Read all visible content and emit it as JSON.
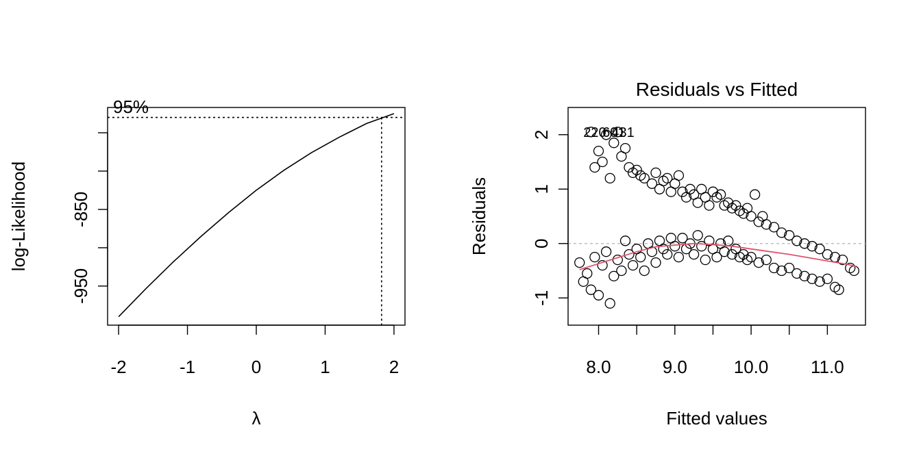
{
  "chart_data": [
    {
      "type": "line",
      "title": "",
      "xlabel": "λ",
      "ylabel": "log-Likelihood",
      "xlim": [
        -2.16,
        2.16
      ],
      "ylim": [
        -1001,
        -717
      ],
      "x_ticks": [
        "-2",
        "-1",
        "0",
        "1",
        "2"
      ],
      "y_ticks": [
        "-950",
        "-850"
      ],
      "annotation": "95%",
      "ci_level_loglik": -730,
      "lambda_ci_lower": 1.82,
      "series": [
        {
          "x": [
            -2.0,
            -1.6,
            -1.2,
            -0.8,
            -0.4,
            0.0,
            0.4,
            0.8,
            1.2,
            1.6,
            2.0
          ],
          "y": [
            -990,
            -953,
            -918,
            -885,
            -854,
            -825,
            -799,
            -776,
            -756,
            -738,
            -725
          ]
        }
      ]
    },
    {
      "type": "scatter",
      "title": "Residuals vs Fitted",
      "xlabel": "Fitted values",
      "ylabel": "Residuals",
      "xlim": [
        7.6,
        11.5
      ],
      "ylim": [
        -1.5,
        2.5
      ],
      "x_ticks": [
        "8.0",
        "9.0",
        "10.0",
        "11.0"
      ],
      "y_ticks": [
        "-1",
        "0",
        "1",
        "2"
      ],
      "reference_line_y": 0,
      "annotations": [
        "220",
        "601",
        "431"
      ],
      "upper_band": [
        [
          7.9,
          2.05
        ],
        [
          7.95,
          1.4
        ],
        [
          8.0,
          1.7
        ],
        [
          8.05,
          1.5
        ],
        [
          8.1,
          2.0
        ],
        [
          8.15,
          1.2
        ],
        [
          8.2,
          1.85
        ],
        [
          8.25,
          2.05
        ],
        [
          8.3,
          1.6
        ],
        [
          8.35,
          1.75
        ],
        [
          8.4,
          1.4
        ],
        [
          8.45,
          1.3
        ],
        [
          8.5,
          1.35
        ],
        [
          8.55,
          1.25
        ],
        [
          8.6,
          1.2
        ],
        [
          8.7,
          1.1
        ],
        [
          8.75,
          1.3
        ],
        [
          8.8,
          1.0
        ],
        [
          8.85,
          1.15
        ],
        [
          8.9,
          1.2
        ],
        [
          8.95,
          0.95
        ],
        [
          9.0,
          1.1
        ],
        [
          9.05,
          1.25
        ],
        [
          9.1,
          0.95
        ],
        [
          9.15,
          0.85
        ],
        [
          9.2,
          1.0
        ],
        [
          9.25,
          0.9
        ],
        [
          9.3,
          0.75
        ],
        [
          9.35,
          1.0
        ],
        [
          9.4,
          0.85
        ],
        [
          9.45,
          0.7
        ],
        [
          9.5,
          0.95
        ],
        [
          9.55,
          0.85
        ],
        [
          9.6,
          0.9
        ],
        [
          9.65,
          0.7
        ],
        [
          9.7,
          0.75
        ],
        [
          9.75,
          0.65
        ],
        [
          9.8,
          0.7
        ],
        [
          9.85,
          0.6
        ],
        [
          9.9,
          0.55
        ],
        [
          9.95,
          0.65
        ],
        [
          10.0,
          0.5
        ],
        [
          10.05,
          0.9
        ],
        [
          10.1,
          0.4
        ],
        [
          10.15,
          0.5
        ],
        [
          10.2,
          0.35
        ],
        [
          10.3,
          0.3
        ],
        [
          10.4,
          0.2
        ],
        [
          10.5,
          0.15
        ],
        [
          10.6,
          0.05
        ],
        [
          10.7,
          0.0
        ],
        [
          10.8,
          -0.05
        ],
        [
          10.9,
          -0.1
        ],
        [
          11.0,
          -0.2
        ],
        [
          11.1,
          -0.25
        ],
        [
          11.2,
          -0.3
        ],
        [
          11.3,
          -0.45
        ],
        [
          11.35,
          -0.5
        ]
      ],
      "lower_band": [
        [
          7.75,
          -0.35
        ],
        [
          7.8,
          -0.7
        ],
        [
          7.85,
          -0.55
        ],
        [
          7.9,
          -0.85
        ],
        [
          7.95,
          -0.25
        ],
        [
          8.0,
          -0.95
        ],
        [
          8.05,
          -0.4
        ],
        [
          8.1,
          -0.15
        ],
        [
          8.15,
          -1.1
        ],
        [
          8.2,
          -0.6
        ],
        [
          8.25,
          -0.3
        ],
        [
          8.3,
          -0.5
        ],
        [
          8.35,
          0.05
        ],
        [
          8.4,
          -0.2
        ],
        [
          8.45,
          -0.4
        ],
        [
          8.5,
          -0.1
        ],
        [
          8.55,
          -0.25
        ],
        [
          8.6,
          -0.5
        ],
        [
          8.65,
          0.0
        ],
        [
          8.7,
          -0.15
        ],
        [
          8.75,
          -0.35
        ],
        [
          8.8,
          0.05
        ],
        [
          8.85,
          -0.1
        ],
        [
          8.9,
          -0.2
        ],
        [
          8.95,
          0.1
        ],
        [
          9.0,
          -0.05
        ],
        [
          9.05,
          -0.25
        ],
        [
          9.1,
          0.1
        ],
        [
          9.15,
          -0.1
        ],
        [
          9.2,
          0.0
        ],
        [
          9.25,
          -0.2
        ],
        [
          9.3,
          0.15
        ],
        [
          9.35,
          -0.05
        ],
        [
          9.4,
          -0.3
        ],
        [
          9.45,
          0.05
        ],
        [
          9.5,
          -0.1
        ],
        [
          9.55,
          -0.25
        ],
        [
          9.6,
          0.0
        ],
        [
          9.65,
          -0.15
        ],
        [
          9.7,
          0.05
        ],
        [
          9.75,
          -0.2
        ],
        [
          9.8,
          -0.1
        ],
        [
          9.85,
          -0.25
        ],
        [
          9.9,
          -0.2
        ],
        [
          9.95,
          -0.3
        ],
        [
          10.0,
          -0.25
        ],
        [
          10.1,
          -0.35
        ],
        [
          10.2,
          -0.3
        ],
        [
          10.3,
          -0.45
        ],
        [
          10.4,
          -0.5
        ],
        [
          10.5,
          -0.45
        ],
        [
          10.6,
          -0.55
        ],
        [
          10.7,
          -0.6
        ],
        [
          10.8,
          -0.65
        ],
        [
          10.9,
          -0.7
        ],
        [
          11.0,
          -0.65
        ],
        [
          11.1,
          -0.8
        ],
        [
          11.15,
          -0.85
        ]
      ],
      "smooth_line": {
        "x": [
          7.75,
          8.0,
          8.25,
          8.5,
          8.75,
          9.0,
          9.25,
          9.5,
          9.75,
          10.0,
          10.25,
          10.5,
          10.75,
          11.0,
          11.25,
          11.38
        ],
        "y": [
          -0.48,
          -0.37,
          -0.26,
          -0.15,
          -0.06,
          -0.03,
          0.0,
          -0.02,
          -0.05,
          -0.1,
          -0.15,
          -0.2,
          -0.26,
          -0.32,
          -0.38,
          -0.42
        ]
      },
      "colors": {
        "points": "#000000",
        "smooth": "#df536b",
        "reference": "#bebebe"
      }
    }
  ]
}
